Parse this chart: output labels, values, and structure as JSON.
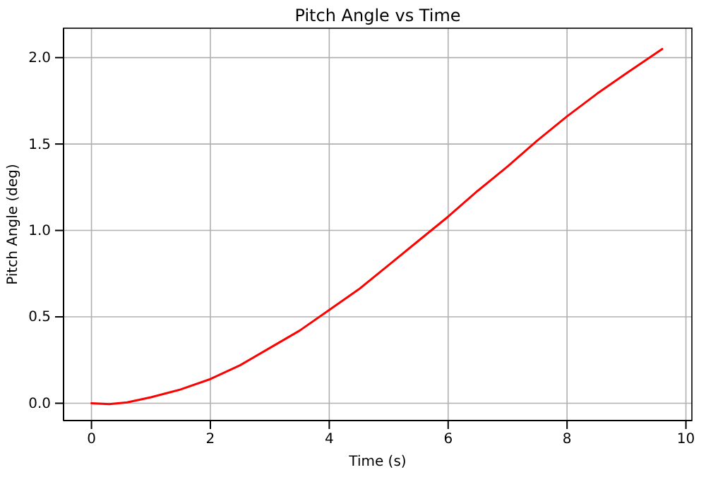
{
  "chart_data": {
    "type": "line",
    "title": "Pitch Angle vs Time",
    "xlabel": "Time (s)",
    "ylabel": "Pitch Angle (deg)",
    "x": [
      0,
      0.3,
      0.6,
      1,
      1.5,
      2,
      2.5,
      3,
      3.5,
      4,
      4.5,
      5,
      5.5,
      6,
      6.5,
      7,
      7.5,
      8,
      8.5,
      9,
      9.6
    ],
    "series": [
      {
        "color": "#ff0000",
        "values": [
          0,
          -0.005,
          0.005,
          0.035,
          0.08,
          0.14,
          0.22,
          0.32,
          0.42,
          0.54,
          0.66,
          0.8,
          0.94,
          1.08,
          1.23,
          1.37,
          1.52,
          1.66,
          1.79,
          1.91,
          2.05
        ]
      }
    ],
    "xlim": [
      -0.47,
      10.1
    ],
    "ylim": [
      -0.1,
      2.17
    ],
    "xticks": [
      0,
      2,
      4,
      6,
      8,
      10
    ],
    "yticks": [
      {
        "value": 0,
        "label": "0.0"
      },
      {
        "value": 0.5,
        "label": "0.5"
      },
      {
        "value": 1,
        "label": "1.0"
      },
      {
        "value": 1.5,
        "label": "1.5"
      },
      {
        "value": 2,
        "label": "2.0"
      }
    ],
    "grid": true,
    "line_style": "solid"
  }
}
